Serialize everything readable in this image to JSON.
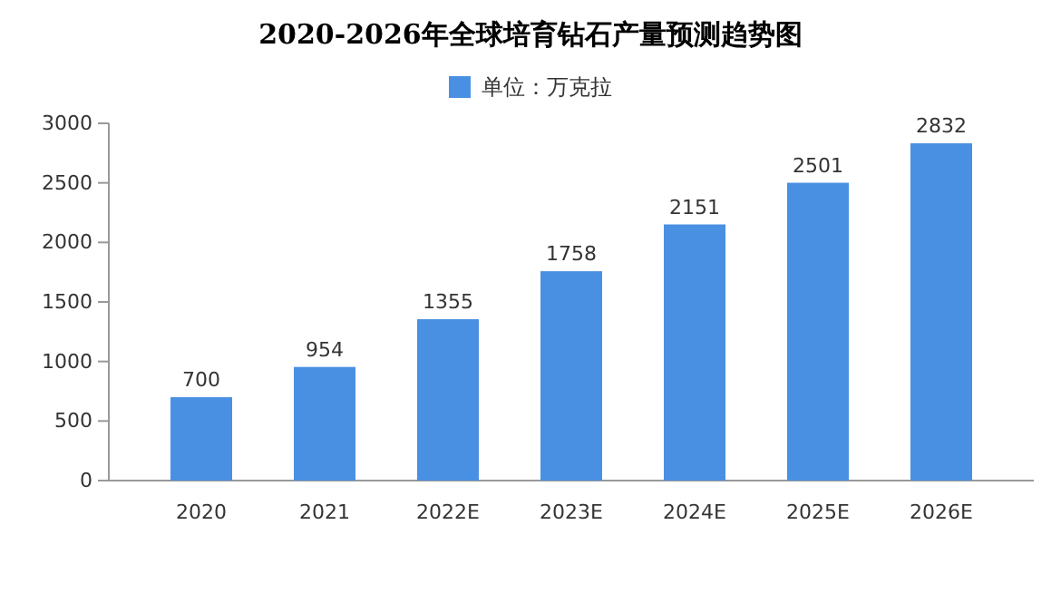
{
  "chart_data": {
    "type": "bar",
    "title": "2020-2026年全球培育钻石产量预测趋势图",
    "categories": [
      "2020",
      "2021",
      "2022E",
      "2023E",
      "2024E",
      "2025E",
      "2026E"
    ],
    "series": [
      {
        "name": "单位：万克拉",
        "color": "#4a90e2",
        "values": [
          700,
          954,
          1355,
          1758,
          2151,
          2501,
          2832
        ]
      }
    ],
    "ylim": [
      0,
      3000
    ],
    "yticks": [
      0,
      500,
      1000,
      1500,
      2000,
      2500,
      3000
    ],
    "data_labels": true,
    "legend": "top",
    "grid": false
  }
}
